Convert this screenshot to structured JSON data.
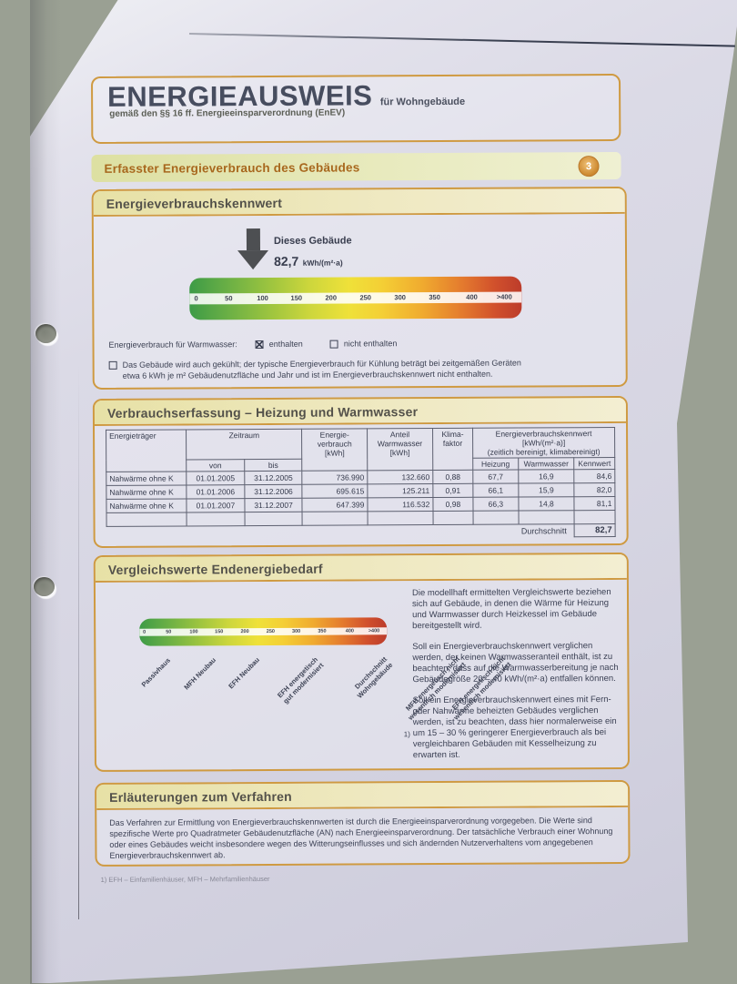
{
  "title": {
    "main": "ENERGIEAUSWEIS",
    "suffix": "für Wohngebäude",
    "subtitle": "gemäß den §§ 16 ff. Energieeinsparverordnung (EnEV)"
  },
  "section_bar": {
    "label": "Erfasster Energieverbrauch des Gebäudes",
    "badge": "3"
  },
  "kennwert_box": {
    "title": "Energieverbrauchskennwert",
    "arrow_label": "Dieses Gebäude",
    "value": "82,7",
    "unit": "kWh/(m²·a)",
    "scale_ticks": [
      "0",
      "50",
      "100",
      "150",
      "200",
      "250",
      "300",
      "350",
      "400",
      ">400"
    ],
    "warmwasser": {
      "label": "Energieverbrauch für Warmwasser:",
      "option_checked": "enthalten",
      "option_unchecked": "nicht enthalten"
    },
    "cooling_note": "Das Gebäude wird auch gekühlt; der typische Energieverbrauch für Kühlung beträgt bei zeitgemäßen Geräten\netwa 6 kWh je m² Gebäudenutzfläche und Jahr und ist im Energieverbrauchskennwert nicht enthalten."
  },
  "table_box": {
    "title": "Verbrauchserfassung – Heizung und Warmwasser",
    "headers": {
      "traeger": "Energieträger",
      "zeitraum": "Zeitraum",
      "von": "von",
      "bis": "bis",
      "verbrauch": "Energie-\nverbrauch\n[kWh]",
      "anteil": "Anteil\nWarmwasser\n[kWh]",
      "klima": "Klima-\nfaktor",
      "kennwert_group": "Energieverbrauchskennwert [kWh/(m²·a)]\n(zeitlich bereinigt, klimabereinigt)",
      "heizung": "Heizung",
      "warmwasser": "Warmwasser",
      "kennwert": "Kennwert"
    },
    "rows": [
      {
        "traeger": "Nahwärme ohne K",
        "von": "01.01.2005",
        "bis": "31.12.2005",
        "verbrauch": "736.990",
        "anteil": "132.660",
        "klima": "0,88",
        "heizung": "67,7",
        "warmwasser": "16,9",
        "kennwert": "84,6"
      },
      {
        "traeger": "Nahwärme ohne K",
        "von": "01.01.2006",
        "bis": "31.12.2006",
        "verbrauch": "695.615",
        "anteil": "125.211",
        "klima": "0,91",
        "heizung": "66,1",
        "warmwasser": "15,9",
        "kennwert": "82,0"
      },
      {
        "traeger": "Nahwärme ohne K",
        "von": "01.01.2007",
        "bis": "31.12.2007",
        "verbrauch": "647.399",
        "anteil": "116.532",
        "klima": "0,98",
        "heizung": "66,3",
        "warmwasser": "14,8",
        "kennwert": "81,1"
      }
    ],
    "average_label": "Durchschnitt",
    "average_value": "82,7"
  },
  "vergleich_box": {
    "title": "Vergleichswerte Endenergiebedarf",
    "scale_ticks": [
      "0",
      "50",
      "100",
      "150",
      "200",
      "250",
      "300",
      "350",
      "400",
      ">400"
    ],
    "scale_labels": [
      "Passivhaus",
      "MFH Neubau",
      "EFH Neubau",
      "EFH energetisch\ngut modernisiert",
      "Durchschnitt\nWohngebäude",
      "MFH energetisch nicht\nwesentlich modernisiert",
      "EFH energetisch nicht\nwesentlich modernisiert"
    ],
    "footnote_mark": "1)",
    "paragraphs": [
      "Die modellhaft ermittelten Vergleichswerte beziehen sich auf Gebäude, in denen die Wärme für Heizung und Warmwasser durch Heizkessel im Gebäude bereitgestellt wird.",
      "Soll ein Energieverbrauchskennwert verglichen werden, der keinen Warmwasseranteil enthält, ist zu beachten, dass auf die Warmwasserbereitung je nach Gebäudegröße 20 – 40 kWh/(m²·a) entfallen können.",
      "Soll ein Energieverbrauchskennwert eines mit Fern- oder Nahwärme beheizten Gebäudes verglichen werden, ist zu beachten, dass hier normalerweise ein um 15 – 30 % geringerer Energieverbrauch als bei vergleichbaren Gebäuden mit Kesselheizung zu erwarten ist."
    ]
  },
  "erlaeuterung_box": {
    "title": "Erläuterungen zum Verfahren",
    "text": "Das Verfahren zur Ermittlung von Energieverbrauchskennwerten ist durch die Energieeinsparverordnung vorgegeben. Die Werte sind spezifische Werte pro Quadratmeter Gebäudenutzfläche (AN) nach Energieeinsparverordnung. Der tatsächliche Verbrauch einer Wohnung oder eines Gebäudes weicht insbesondere wegen des Witterungseinflusses und sich ändernden Nutzerverhaltens vom angegebenen Energieverbrauchskennwert ab."
  },
  "page_footer": "1) EFH – Einfamilienhäuser, MFH – Mehrfamilienhäuser",
  "colors": {
    "accent_orange": "#cf9a41",
    "heading_orange": "#a8681e",
    "scale_green": "#3d9b47",
    "scale_yellow": "#efe139",
    "scale_red": "#bc3c2b",
    "paper": "#dbdae6",
    "background": "#9aa093"
  }
}
